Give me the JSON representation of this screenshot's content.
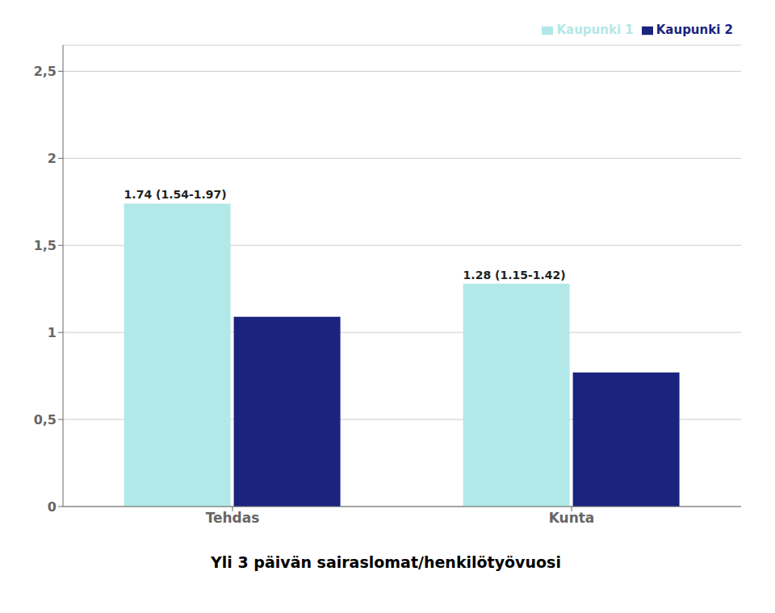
{
  "chart_data": {
    "type": "bar",
    "title": "Yli 3 päivän sairaslomat/henkilötyövuosi",
    "categories": [
      "Tehdas",
      "Kunta"
    ],
    "series": [
      {
        "name": "Kaupunki 1",
        "color": "#b2e8e8",
        "values": [
          1.74,
          1.28
        ],
        "value_labels": [
          "1.74 (1.54-1.97)",
          "1.28 (1.15-1.42)"
        ]
      },
      {
        "name": "Kaupunki 2",
        "color": "#1a237e",
        "values": [
          1.09,
          0.77
        ]
      }
    ],
    "ylim": [
      0,
      2.65
    ],
    "yticks": [
      0,
      {
        "value": 0.5,
        "label": "0,5"
      },
      1,
      {
        "value": 1.5,
        "label": "1,5"
      },
      2,
      {
        "value": 2.5,
        "label": "2,5"
      }
    ],
    "grid": true,
    "legend": "upper right"
  }
}
